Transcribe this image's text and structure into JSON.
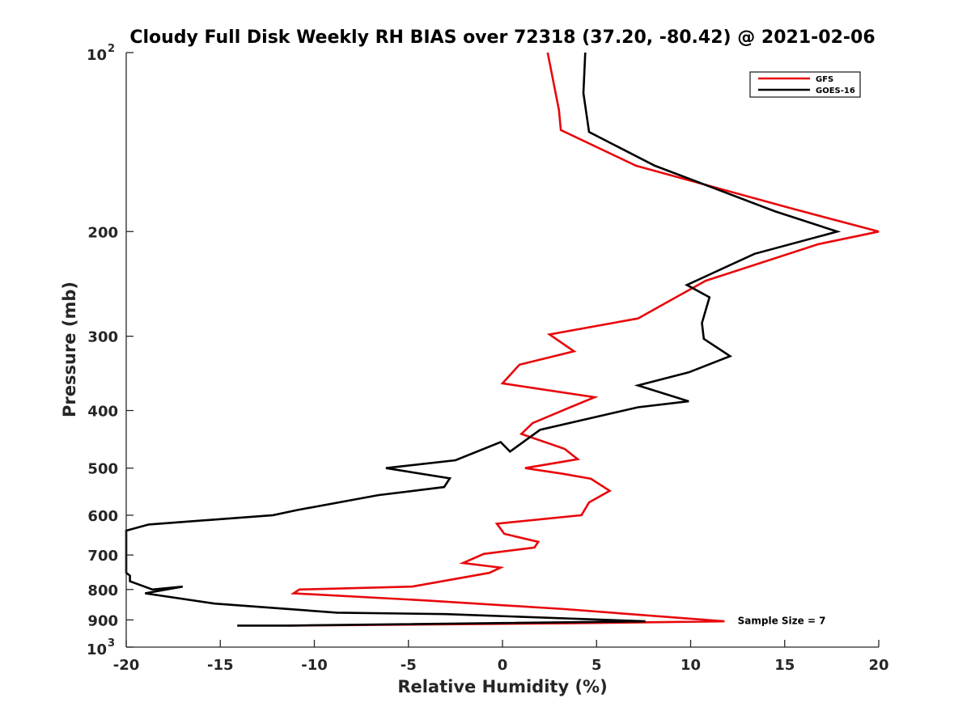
{
  "chart_data": {
    "type": "line",
    "title": "Cloudy Full Disk Weekly RH BIAS over 72318 (37.20, -80.42) @ 2021-02-06",
    "xlabel": "Relative Humidity (%)",
    "ylabel": "Pressure (mb)",
    "xlim": [
      -20,
      20
    ],
    "ylim": [
      1000,
      100
    ],
    "yscale": "log",
    "x_ticks": [
      -20,
      -15,
      -10,
      -5,
      0,
      5,
      10,
      15,
      20
    ],
    "x_tick_labels": [
      "-20",
      "-15",
      "-10",
      "-5",
      "0",
      "5",
      "10",
      "15",
      "20"
    ],
    "y_ticks": [
      200,
      300,
      400,
      500,
      600,
      700,
      800,
      900
    ],
    "y_tick_labels": [
      "200",
      "300",
      "400",
      "500",
      "600",
      "700",
      "800",
      "900"
    ],
    "y_decade_ticks": [
      {
        "value": 100,
        "base": "10",
        "exp": "2"
      },
      {
        "value": 1000,
        "base": "10",
        "exp": "3"
      }
    ],
    "legend_position": "top-right",
    "grid": false,
    "series": [
      {
        "name": "GFS",
        "color": "#e8070b",
        "points": [
          [
            2.4,
            100
          ],
          [
            3.0,
            125
          ],
          [
            3.1,
            135
          ],
          [
            7.1,
            155
          ],
          [
            15.4,
            183
          ],
          [
            20.0,
            200
          ],
          [
            16.8,
            210
          ],
          [
            10.8,
            242
          ],
          [
            9.6,
            254
          ],
          [
            7.2,
            280
          ],
          [
            2.5,
            298
          ],
          [
            3.8,
            318
          ],
          [
            0.9,
            335
          ],
          [
            0.0,
            360
          ],
          [
            4.9,
            380
          ],
          [
            3.6,
            395
          ],
          [
            1.6,
            420
          ],
          [
            1.0,
            438
          ],
          [
            3.3,
            464
          ],
          [
            4.0,
            483
          ],
          [
            1.2,
            500
          ],
          [
            3.2,
            511
          ],
          [
            4.7,
            521
          ],
          [
            5.7,
            546
          ],
          [
            4.6,
            571
          ],
          [
            4.2,
            600
          ],
          [
            -0.3,
            620
          ],
          [
            0.1,
            645
          ],
          [
            1.9,
            665
          ],
          [
            1.7,
            680
          ],
          [
            -1.0,
            697
          ],
          [
            -2.1,
            722
          ],
          [
            -0.1,
            735
          ],
          [
            -0.7,
            750
          ],
          [
            -4.8,
            791
          ],
          [
            -10.8,
            800
          ],
          [
            -11.1,
            812
          ],
          [
            -4.0,
            835
          ],
          [
            3.3,
            863
          ],
          [
            11.8,
            905
          ],
          [
            3.3,
            912
          ],
          [
            -11.4,
            920
          ]
        ]
      },
      {
        "name": "GOES-16",
        "color": "#000000",
        "points": [
          [
            4.4,
            100
          ],
          [
            4.3,
            117
          ],
          [
            4.6,
            136
          ],
          [
            8.1,
            155
          ],
          [
            14.5,
            185
          ],
          [
            17.8,
            200
          ],
          [
            13.4,
            218
          ],
          [
            9.8,
            246
          ],
          [
            11.0,
            258
          ],
          [
            10.6,
            285
          ],
          [
            10.7,
            303
          ],
          [
            12.1,
            324
          ],
          [
            9.9,
            345
          ],
          [
            7.2,
            363
          ],
          [
            9.9,
            386
          ],
          [
            7.2,
            395
          ],
          [
            2.0,
            431
          ],
          [
            0.4,
            469
          ],
          [
            -0.1,
            452
          ],
          [
            -2.5,
            485
          ],
          [
            -6.2,
            500
          ],
          [
            -2.8,
            520
          ],
          [
            -3.1,
            538
          ],
          [
            -6.6,
            555
          ],
          [
            -10.9,
            588
          ],
          [
            -12.2,
            600
          ],
          [
            -18.8,
            622
          ],
          [
            -20.0,
            637
          ],
          [
            -20.0,
            750
          ],
          [
            -19.8,
            758
          ],
          [
            -19.8,
            775
          ],
          [
            -18.6,
            800
          ],
          [
            -17.0,
            791
          ],
          [
            -19.0,
            812
          ],
          [
            -15.3,
            845
          ],
          [
            -8.8,
            875
          ],
          [
            -3.0,
            880
          ],
          [
            7.6,
            905
          ],
          [
            -11.4,
            920
          ],
          [
            -14.1,
            920
          ]
        ]
      }
    ],
    "annotations": [
      {
        "text": "Sample Size = 7",
        "x": 12.5,
        "y": 900
      }
    ]
  }
}
